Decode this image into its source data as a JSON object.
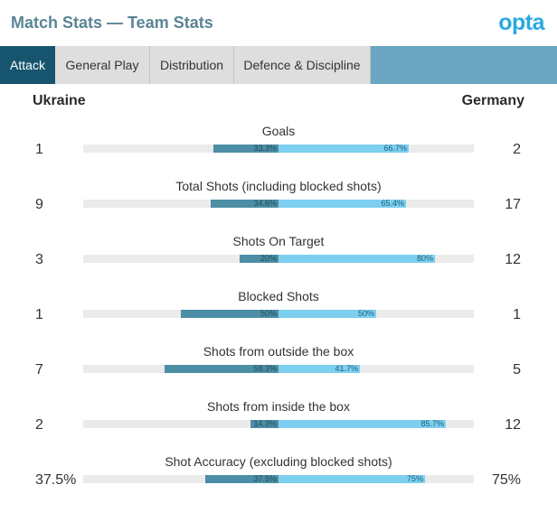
{
  "header": {
    "title": "Match Stats — Team Stats",
    "logo": "opta"
  },
  "tabs": [
    {
      "label": "Attack",
      "active": true
    },
    {
      "label": "General Play",
      "active": false
    },
    {
      "label": "Distribution",
      "active": false
    },
    {
      "label": "Defence & Discipline",
      "active": false
    }
  ],
  "teams": {
    "left": "Ukraine",
    "right": "Germany"
  },
  "colors": {
    "left_bar": "#4c8ea5",
    "right_bar": "#7dcff0",
    "active_tab": "#17556e",
    "tab_strip": "#6aa6c1",
    "title": "#5a8596",
    "logo": "#29a9e0"
  },
  "stats": [
    {
      "label": "Goals",
      "left": "1",
      "right": "2",
      "left_pct": "33.3%",
      "right_pct": "66.7%",
      "left_share": 33.3,
      "right_share": 66.7
    },
    {
      "label": "Total Shots (including blocked shots)",
      "left": "9",
      "right": "17",
      "left_pct": "34.6%",
      "right_pct": "65.4%",
      "left_share": 34.6,
      "right_share": 65.4
    },
    {
      "label": "Shots On Target",
      "left": "3",
      "right": "12",
      "left_pct": "20%",
      "right_pct": "80%",
      "left_share": 20,
      "right_share": 80
    },
    {
      "label": "Blocked Shots",
      "left": "1",
      "right": "1",
      "left_pct": "50%",
      "right_pct": "50%",
      "left_share": 50,
      "right_share": 50
    },
    {
      "label": "Shots from outside the box",
      "left": "7",
      "right": "5",
      "left_pct": "58.3%",
      "right_pct": "41.7%",
      "left_share": 58.3,
      "right_share": 41.7
    },
    {
      "label": "Shots from inside the box",
      "left": "2",
      "right": "12",
      "left_pct": "14.3%",
      "right_pct": "85.7%",
      "left_share": 14.3,
      "right_share": 85.7
    },
    {
      "label": "Shot Accuracy (excluding blocked shots)",
      "left": "37.5%",
      "right": "75%",
      "left_pct": "37.5%",
      "right_pct": "75%",
      "left_share": 37.5,
      "right_share": 75
    }
  ]
}
